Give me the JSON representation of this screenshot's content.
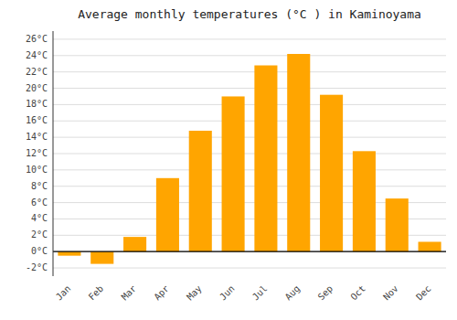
{
  "chart_data": {
    "type": "bar",
    "title": "Average monthly temperatures (°C ) in Kaminoyama",
    "categories": [
      "Jan",
      "Feb",
      "Mar",
      "Apr",
      "May",
      "Jun",
      "Jul",
      "Aug",
      "Sep",
      "Oct",
      "Nov",
      "Dec"
    ],
    "values": [
      -0.5,
      -1.5,
      1.8,
      9.0,
      14.8,
      19.0,
      22.8,
      24.2,
      19.2,
      12.3,
      6.5,
      1.2
    ],
    "color": "#FFA500",
    "ylim": [
      -3,
      27
    ],
    "yticks": [
      {
        "value": -2,
        "label": "-2°C"
      },
      {
        "value": 0,
        "label": "0°C"
      },
      {
        "value": 2,
        "label": "2°C"
      },
      {
        "value": 4,
        "label": "4°C"
      },
      {
        "value": 6,
        "label": "6°C"
      },
      {
        "value": 8,
        "label": "8°C"
      },
      {
        "value": 10,
        "label": "10°C"
      },
      {
        "value": 12,
        "label": "12°C"
      },
      {
        "value": 14,
        "label": "14°C"
      },
      {
        "value": 16,
        "label": "16°C"
      },
      {
        "value": 18,
        "label": "18°C"
      },
      {
        "value": 20,
        "label": "20°C"
      },
      {
        "value": 22,
        "label": "22°C"
      },
      {
        "value": 24,
        "label": "24°C"
      },
      {
        "value": 26,
        "label": "26°C"
      }
    ],
    "grid": true
  }
}
